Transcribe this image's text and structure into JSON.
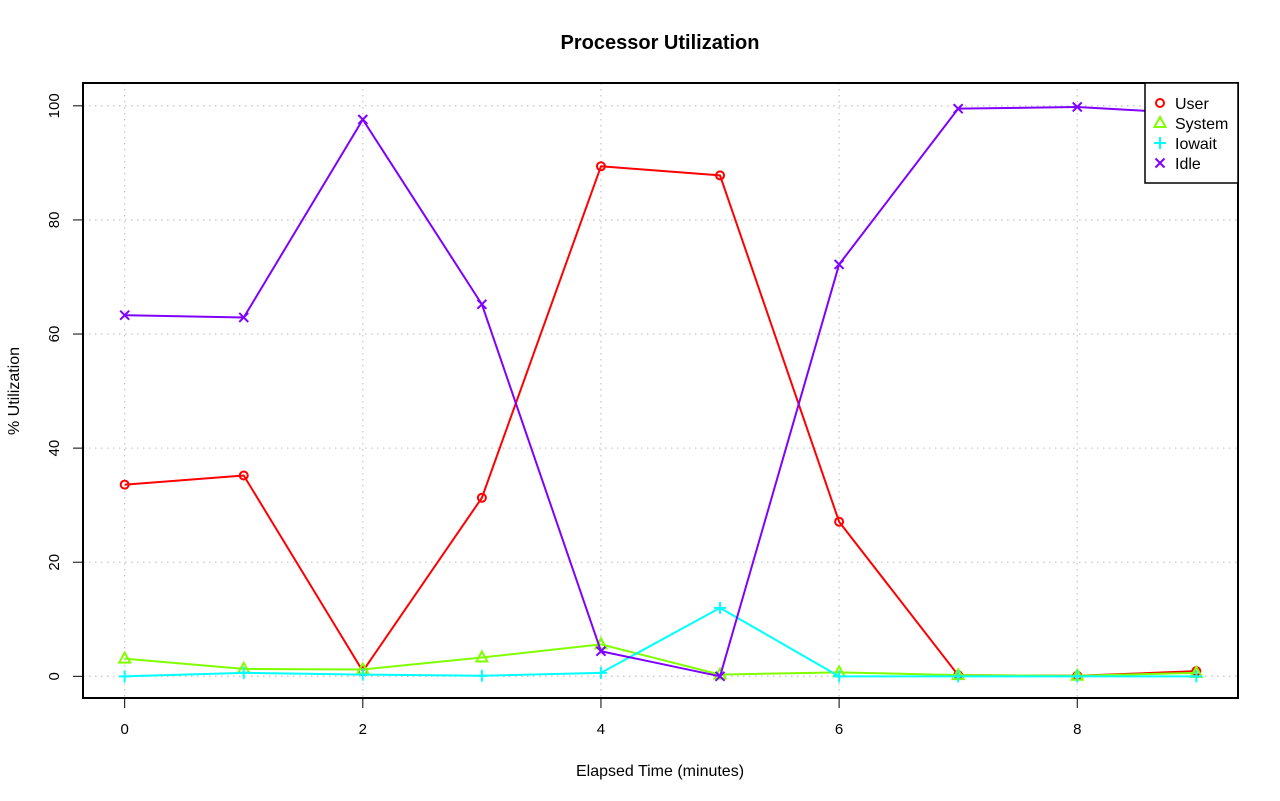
{
  "chart_data": {
    "type": "line",
    "title": "Processor Utilization",
    "xlabel": "Elapsed Time (minutes)",
    "ylabel": "% Utilization",
    "x": [
      0,
      1,
      2,
      3,
      4,
      5,
      6,
      7,
      8,
      9
    ],
    "xlim": [
      -0.35,
      9.35
    ],
    "ylim": [
      -3.8,
      104
    ],
    "xticks": [
      0,
      2,
      4,
      6,
      8
    ],
    "yticks": [
      0,
      20,
      40,
      60,
      80,
      100
    ],
    "grid": true,
    "legend_position": "top-right",
    "series": [
      {
        "name": "User",
        "color": "#ff0000",
        "marker": "circle",
        "values": [
          33.6,
          35.2,
          0.9,
          31.3,
          89.4,
          87.8,
          27.1,
          0.2,
          0.1,
          0.9
        ]
      },
      {
        "name": "System",
        "color": "#80ff00",
        "marker": "triangle",
        "values": [
          3.1,
          1.3,
          1.2,
          3.3,
          5.6,
          0.3,
          0.7,
          0.2,
          0.1,
          0.6
        ]
      },
      {
        "name": "Iowait",
        "color": "#00ffff",
        "marker": "plus",
        "values": [
          0.0,
          0.6,
          0.3,
          0.1,
          0.6,
          12.0,
          0.0,
          0.0,
          0.0,
          0.0
        ]
      },
      {
        "name": "Idle",
        "color": "#8000ff",
        "marker": "cross",
        "values": [
          63.3,
          62.9,
          97.6,
          65.2,
          4.4,
          0.0,
          72.2,
          99.5,
          99.8,
          98.6
        ]
      }
    ]
  }
}
